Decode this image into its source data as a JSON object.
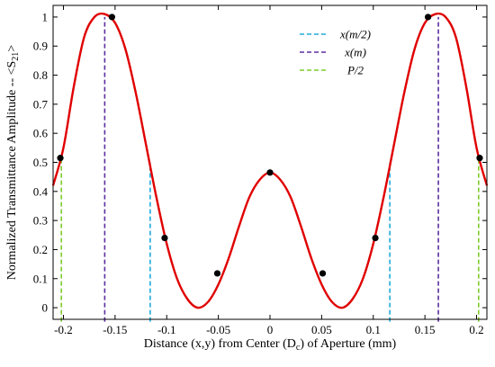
{
  "chart_data": {
    "type": "line",
    "xlabel": {
      "text": "Distance (x,y) from Center (D",
      "sub": "c",
      "suffix": ") of Aperture (mm)"
    },
    "ylabel": {
      "text": "Normalized Transmittance Amplitude -- <S",
      "sub": "21",
      "suffix": ">"
    },
    "xlim": [
      -0.21,
      0.21
    ],
    "ylim": [
      -0.04,
      1.04
    ],
    "xticks": [
      -0.2,
      -0.15,
      -0.1,
      -0.05,
      0,
      0.05,
      0.1,
      0.15,
      0.2
    ],
    "xtick_labels": [
      "-0.2",
      "-0.15",
      "-0.1",
      "-0.05",
      "0",
      "0.05",
      "0.1",
      "0.15",
      "0.2"
    ],
    "yticks": [
      0,
      0.1,
      0.2,
      0.3,
      0.4,
      0.5,
      0.6,
      0.7,
      0.8,
      0.9,
      1
    ],
    "ytick_labels": [
      "0",
      "0.1",
      "0.2",
      "0.3",
      "0.4",
      "0.5",
      "0.6",
      "0.7",
      "0.8",
      "0.9",
      "1"
    ],
    "grid": false,
    "legend_position": "top-right",
    "curve": {
      "color": "#e00000",
      "x": [
        -0.21,
        -0.2,
        -0.19,
        -0.18,
        -0.17,
        -0.16,
        -0.15,
        -0.14,
        -0.13,
        -0.12,
        -0.11,
        -0.1,
        -0.09,
        -0.08,
        -0.07,
        -0.06,
        -0.05,
        -0.04,
        -0.03,
        -0.02,
        -0.01,
        0,
        0.01,
        0.02,
        0.03,
        0.04,
        0.05,
        0.06,
        0.07,
        0.08,
        0.09,
        0.1,
        0.11,
        0.12,
        0.13,
        0.14,
        0.15,
        0.16,
        0.17,
        0.18,
        0.19,
        0.2,
        0.21
      ],
      "y": [
        0.42,
        0.55,
        0.76,
        0.93,
        1.0,
        1.01,
        0.98,
        0.89,
        0.74,
        0.56,
        0.38,
        0.22,
        0.1,
        0.03,
        0.0,
        0.02,
        0.08,
        0.17,
        0.28,
        0.38,
        0.44,
        0.465,
        0.44,
        0.38,
        0.28,
        0.17,
        0.08,
        0.02,
        0.0,
        0.03,
        0.1,
        0.22,
        0.38,
        0.56,
        0.74,
        0.89,
        0.98,
        1.01,
        1.0,
        0.93,
        0.76,
        0.55,
        0.42
      ]
    },
    "points": {
      "color": "#000000",
      "x": [
        -0.203,
        -0.153,
        -0.102,
        -0.051,
        0,
        0.051,
        0.102,
        0.153,
        0.203
      ],
      "y": [
        0.515,
        1.0,
        0.24,
        0.118,
        0.465,
        0.118,
        0.24,
        1.0,
        0.515
      ]
    },
    "series": [
      {
        "name": "x(m/2)",
        "color": "#1eaadc",
        "x": [
          -0.116,
          0.116
        ],
        "y_top": 0.5
      },
      {
        "name": "x(m)",
        "color": "#5b2ea0",
        "x": [
          -0.16,
          0.163
        ],
        "y_top": 1.0
      },
      {
        "name": "P/2",
        "color": "#7ecb2a",
        "x": [
          -0.202,
          0.202
        ],
        "y_top": 0.515
      }
    ]
  }
}
